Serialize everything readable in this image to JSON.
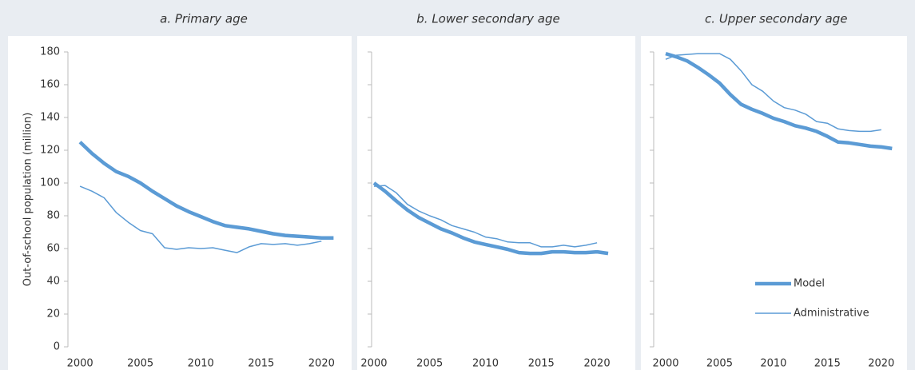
{
  "chart_data": [
    {
      "type": "line",
      "title": "a. Primary age",
      "ylabel": "Out-of-school population (million)",
      "x": [
        2000,
        2001,
        2002,
        2003,
        2004,
        2005,
        2006,
        2007,
        2008,
        2009,
        2010,
        2011,
        2012,
        2013,
        2014,
        2015,
        2016,
        2017,
        2018,
        2019,
        2020,
        2021
      ],
      "series": [
        {
          "name": "Model",
          "color": "#5b9bd5",
          "values": [
            125,
            118,
            112,
            107,
            104,
            100,
            95,
            90.5,
            86,
            82.5,
            79.5,
            76.5,
            74,
            73,
            72,
            70.5,
            69,
            68,
            67.5,
            67,
            66.5,
            66.5
          ]
        },
        {
          "name": "Administrative",
          "color": "#5b9bd5",
          "values": [
            98,
            95,
            91,
            82,
            76,
            71,
            69,
            60.5,
            59.5,
            60.5,
            60,
            60.5,
            59,
            57.5,
            61,
            63,
            62.5,
            63,
            62,
            63,
            64.5,
            null
          ]
        }
      ],
      "xlim": [
        1999,
        2021.5
      ],
      "xticks": [
        2000,
        2005,
        2010,
        2015,
        2020
      ],
      "ylim": [
        0,
        180
      ],
      "yticks": [
        0,
        20,
        40,
        60,
        80,
        100,
        120,
        140,
        160,
        180
      ],
      "show_ytick_labels": true,
      "legend": false
    },
    {
      "type": "line",
      "title": "b. Lower secondary age",
      "x": [
        2000,
        2001,
        2002,
        2003,
        2004,
        2005,
        2006,
        2007,
        2008,
        2009,
        2010,
        2011,
        2012,
        2013,
        2014,
        2015,
        2016,
        2017,
        2018,
        2019,
        2020,
        2021
      ],
      "series": [
        {
          "name": "Model",
          "color": "#5b9bd5",
          "values": [
            100,
            95,
            89,
            83.5,
            79,
            75.5,
            72,
            69.5,
            66.5,
            64,
            62.5,
            61,
            59.5,
            57.5,
            57,
            57,
            58,
            58,
            57.5,
            57.5,
            58,
            57
          ]
        },
        {
          "name": "Administrative",
          "color": "#5b9bd5",
          "values": [
            98,
            98.5,
            94,
            87,
            83,
            80,
            77.5,
            74,
            72,
            70,
            67,
            66,
            64,
            63.5,
            63.5,
            61,
            61,
            62,
            61,
            62,
            63.5,
            null
          ]
        }
      ],
      "xlim": [
        1999,
        2021.5
      ],
      "xticks": [
        2000,
        2005,
        2010,
        2015,
        2020
      ],
      "ylim": [
        0,
        180
      ],
      "yticks": [
        0,
        20,
        40,
        60,
        80,
        100,
        120,
        140,
        160,
        180
      ],
      "show_ytick_labels": false,
      "legend": false
    },
    {
      "type": "line",
      "title": "c. Upper secondary age",
      "x": [
        2000,
        2001,
        2002,
        2003,
        2004,
        2005,
        2006,
        2007,
        2008,
        2009,
        2010,
        2011,
        2012,
        2013,
        2014,
        2015,
        2016,
        2017,
        2018,
        2019,
        2020,
        2021
      ],
      "series": [
        {
          "name": "Model",
          "color": "#5b9bd5",
          "values": [
            179,
            177,
            174.5,
            170.5,
            166,
            161,
            154,
            148,
            145,
            142.5,
            139.5,
            137.5,
            135,
            133.5,
            131.5,
            128.5,
            125,
            124.5,
            123.5,
            122.5,
            122,
            121
          ]
        },
        {
          "name": "Administrative",
          "color": "#5b9bd5",
          "values": [
            175.5,
            178,
            178.5,
            179,
            179,
            179,
            175.5,
            168.5,
            160,
            156,
            150,
            146,
            144.5,
            142,
            137.5,
            136.5,
            133,
            132,
            131.5,
            131.5,
            132.5,
            null
          ]
        }
      ],
      "xlim": [
        1999,
        2021.5
      ],
      "xticks": [
        2000,
        2005,
        2010,
        2015,
        2020
      ],
      "ylim": [
        0,
        180
      ],
      "yticks": [
        0,
        20,
        40,
        60,
        80,
        100,
        120,
        140,
        160,
        180
      ],
      "show_ytick_labels": false,
      "legend": "lower right"
    }
  ]
}
